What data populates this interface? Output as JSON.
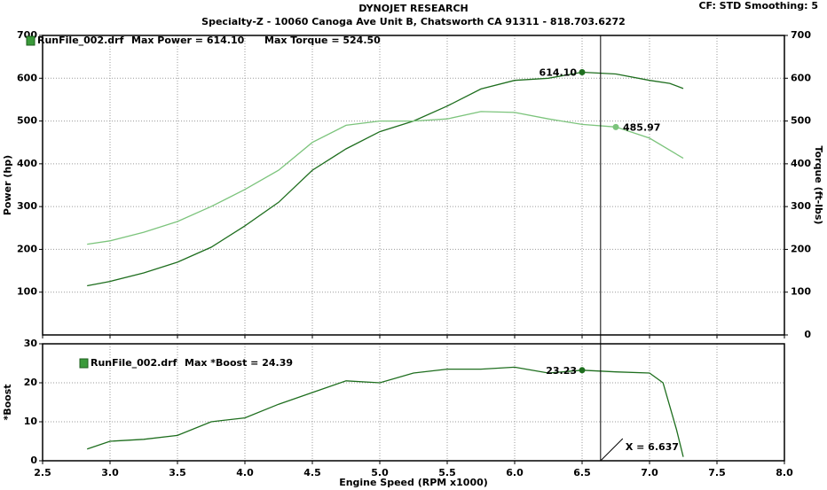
{
  "header": {
    "title": "DYNOJET RESEARCH",
    "subtitle": "Specialty-Z - 10060 Canoga Ave Unit B, Chatsworth CA 91311 - 818.703.6272",
    "settings": "CF: STD  Smoothing: 5"
  },
  "chart_data": [
    {
      "type": "line",
      "run_file": "RunFile_002.drf",
      "y_label": "Power (hp)",
      "y2_label": "Torque (ft-lbs)",
      "xlim": [
        2.5,
        8.0
      ],
      "ylim": [
        0,
        700
      ],
      "y2lim": [
        0,
        700
      ],
      "yticks": [
        100,
        200,
        300,
        400,
        500,
        600,
        700
      ],
      "y2ticks": [
        0,
        100,
        200,
        300,
        400,
        500,
        600,
        700
      ],
      "grid": true,
      "series": [
        {
          "name": "Max Power = 614.10",
          "color": "#1e6e1e",
          "axis": "y",
          "x": [
            2.83,
            3.0,
            3.25,
            3.5,
            3.75,
            4.0,
            4.25,
            4.5,
            4.75,
            5.0,
            5.25,
            5.5,
            5.75,
            6.0,
            6.25,
            6.5,
            6.75,
            7.0,
            7.15,
            7.25
          ],
          "values": [
            115,
            125,
            145,
            170,
            205,
            255,
            310,
            385,
            435,
            475,
            500,
            535,
            575,
            595,
            600,
            614,
            610,
            595,
            588,
            576
          ],
          "marker": {
            "x": 6.5,
            "value": 614.1,
            "label": "614.10"
          }
        },
        {
          "name": "Max Torque = 524.50",
          "color": "#7cc47c",
          "axis": "y2",
          "x": [
            2.83,
            3.0,
            3.25,
            3.5,
            3.75,
            4.0,
            4.25,
            4.5,
            4.75,
            5.0,
            5.25,
            5.5,
            5.75,
            6.0,
            6.25,
            6.5,
            6.75,
            7.0,
            7.25
          ],
          "values": [
            212,
            220,
            240,
            265,
            300,
            340,
            385,
            450,
            490,
            500,
            500,
            505,
            522,
            520,
            505,
            492,
            486,
            460,
            413
          ],
          "marker": {
            "x": 6.75,
            "value": 485.97,
            "label": "485.97"
          }
        }
      ]
    },
    {
      "type": "line",
      "run_file": "RunFile_002.drf",
      "x_label": "Engine Speed (RPM x1000)",
      "y_label": "*Boost",
      "xlim": [
        2.5,
        8.0
      ],
      "ylim": [
        0,
        30
      ],
      "xticks": [
        2.5,
        {
          "value": 3,
          "label": "3.0"
        },
        3.5,
        {
          "value": 4,
          "label": "4.0"
        },
        4.5,
        {
          "value": 5,
          "label": "5.0"
        },
        5.5,
        {
          "value": 6,
          "label": "6.0"
        },
        6.5,
        {
          "value": 7,
          "label": "7.0"
        },
        7.5,
        {
          "value": 8,
          "label": "8.0"
        }
      ],
      "yticks": [
        0,
        10,
        20,
        30
      ],
      "grid": true,
      "cursor": {
        "value": 6.637,
        "label": "X = 6.637"
      },
      "series": [
        {
          "name": "Max *Boost = 24.39",
          "color": "#1e6e1e",
          "axis": "y",
          "x": [
            2.83,
            3.0,
            3.25,
            3.5,
            3.75,
            4.0,
            4.25,
            4.5,
            4.75,
            5.0,
            5.25,
            5.5,
            5.75,
            6.0,
            6.25,
            6.5,
            6.75,
            7.0,
            7.1,
            7.2,
            7.25
          ],
          "values": [
            3,
            5,
            5.5,
            6.5,
            10,
            11,
            14.5,
            17.5,
            20.5,
            20,
            22.5,
            23.5,
            23.5,
            24,
            22.5,
            23.23,
            22.8,
            22.5,
            20,
            8,
            1
          ],
          "marker": {
            "x": 6.5,
            "value": 23.23,
            "label": "23.23"
          }
        }
      ]
    }
  ]
}
